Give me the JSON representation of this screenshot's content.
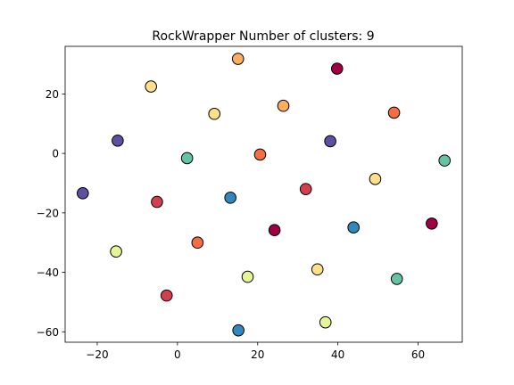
{
  "chart_data": {
    "type": "scatter",
    "title": "RockWrapper Number of clusters: 9",
    "xlabel": "",
    "ylabel": "",
    "xlim": [
      -28,
      71
    ],
    "ylim": [
      -63.5,
      36
    ],
    "xticks": [
      -20,
      0,
      20,
      40,
      60
    ],
    "yticks": [
      -60,
      -40,
      -20,
      0,
      20
    ],
    "xtick_labels": [
      "−20",
      "0",
      "20",
      "40",
      "60"
    ],
    "ytick_labels": [
      "−60",
      "−40",
      "−20",
      "0",
      "20"
    ],
    "grid": false,
    "legend": "none",
    "cluster_colors": {
      "0": "#9e0142",
      "1": "#d53e4f",
      "2": "#f46d43",
      "3": "#fdae61",
      "4": "#fee08b",
      "5": "#e6f598",
      "6": "#abdda4",
      "7": "#66c2a5",
      "8": "#3288bd",
      "9": "#5e4fa2"
    },
    "points": [
      {
        "x": 15.1,
        "y": 31.8,
        "cluster": "3"
      },
      {
        "x": 39.8,
        "y": 28.5,
        "cluster": "0"
      },
      {
        "x": -6.6,
        "y": 22.5,
        "cluster": "4"
      },
      {
        "x": 26.4,
        "y": 16.0,
        "cluster": "3"
      },
      {
        "x": 9.2,
        "y": 13.3,
        "cluster": "4"
      },
      {
        "x": 54.0,
        "y": 13.7,
        "cluster": "2"
      },
      {
        "x": -14.9,
        "y": 4.3,
        "cluster": "9"
      },
      {
        "x": 38.1,
        "y": 4.1,
        "cluster": "9"
      },
      {
        "x": 20.6,
        "y": -0.4,
        "cluster": "2"
      },
      {
        "x": 2.4,
        "y": -1.6,
        "cluster": "7"
      },
      {
        "x": 66.6,
        "y": -2.4,
        "cluster": "7"
      },
      {
        "x": 49.3,
        "y": -8.6,
        "cluster": "4"
      },
      {
        "x": 32.0,
        "y": -12.0,
        "cluster": "1"
      },
      {
        "x": -23.6,
        "y": -13.4,
        "cluster": "9"
      },
      {
        "x": 13.2,
        "y": -14.9,
        "cluster": "8"
      },
      {
        "x": -5.1,
        "y": -16.3,
        "cluster": "1"
      },
      {
        "x": 63.4,
        "y": -23.6,
        "cluster": "0"
      },
      {
        "x": 43.9,
        "y": -24.9,
        "cluster": "8"
      },
      {
        "x": 24.2,
        "y": -25.8,
        "cluster": "0"
      },
      {
        "x": 5.0,
        "y": -30.0,
        "cluster": "2"
      },
      {
        "x": -15.3,
        "y": -33.0,
        "cluster": "5"
      },
      {
        "x": 34.9,
        "y": -39.0,
        "cluster": "4"
      },
      {
        "x": 17.5,
        "y": -41.5,
        "cluster": "5"
      },
      {
        "x": 54.7,
        "y": -42.2,
        "cluster": "7"
      },
      {
        "x": -2.7,
        "y": -47.8,
        "cluster": "1"
      },
      {
        "x": 36.9,
        "y": -56.8,
        "cluster": "5"
      },
      {
        "x": 15.2,
        "y": -59.5,
        "cluster": "8"
      }
    ]
  }
}
